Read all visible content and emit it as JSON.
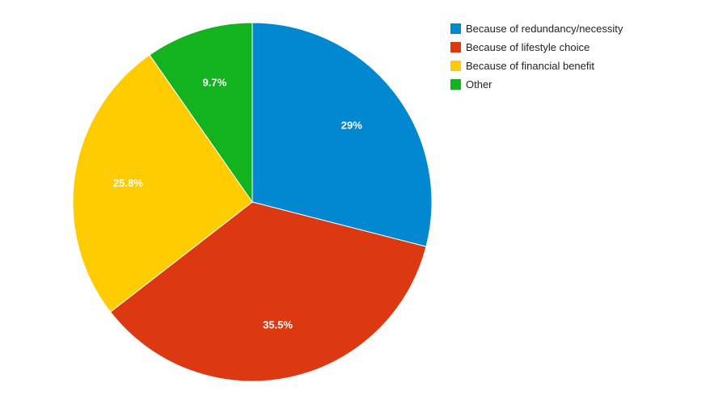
{
  "chart_data": {
    "type": "pie",
    "slices": [
      {
        "label": "Because of redundancy/necessity",
        "value": 29,
        "value_label": "29%",
        "color": "#0288d1"
      },
      {
        "label": "Because of lifestyle choice",
        "value": 35.5,
        "value_label": "35.5%",
        "color": "#dc3912"
      },
      {
        "label": "Because of financial benefit",
        "value": 25.8,
        "value_label": "25.8%",
        "color": "#ffcc00"
      },
      {
        "label": "Other",
        "value": 9.7,
        "value_label": "9.7%",
        "color": "#13b31f"
      }
    ],
    "legend_position": "top-right",
    "start_angle": "12 o'clock",
    "direction": "clockwise"
  }
}
